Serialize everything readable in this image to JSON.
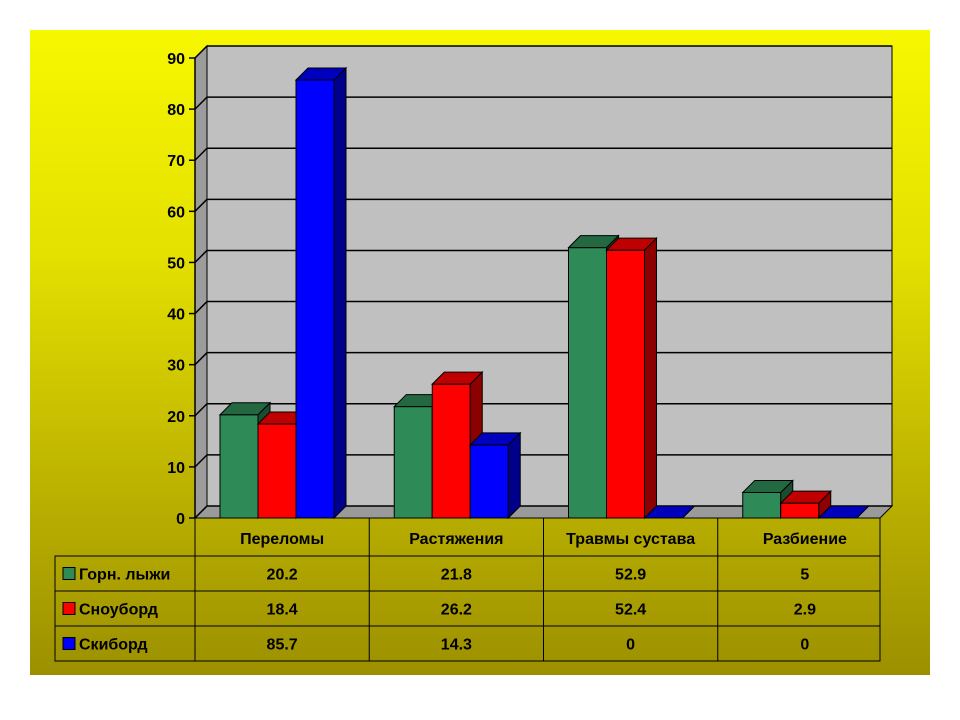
{
  "chart_data": {
    "type": "bar",
    "title": "",
    "xlabel": "",
    "ylabel": "",
    "ylim": [
      0,
      90
    ],
    "yticks": [
      0,
      10,
      20,
      30,
      40,
      50,
      60,
      70,
      80,
      90
    ],
    "grid": true,
    "three_d": true,
    "legend": "data-table-left",
    "categories": [
      "Переломы",
      "Растяжения",
      "Травмы сустава",
      "Разбиение"
    ],
    "series": [
      {
        "name": "Горн. лыжи",
        "color": "#2e8b57",
        "values": [
          20.2,
          21.8,
          52.9,
          5
        ]
      },
      {
        "name": "Сноуборд",
        "color": "#ff0000",
        "values": [
          18.4,
          26.2,
          52.4,
          2.9
        ]
      },
      {
        "name": "Скиборд",
        "color": "#0000ff",
        "values": [
          85.7,
          14.3,
          0,
          0
        ]
      }
    ],
    "table": [
      [
        "20.2",
        "21.8",
        "52.9",
        "5"
      ],
      [
        "18.4",
        "26.2",
        "52.4",
        "2.9"
      ],
      [
        "85.7",
        "14.3",
        "0",
        "0"
      ]
    ]
  }
}
